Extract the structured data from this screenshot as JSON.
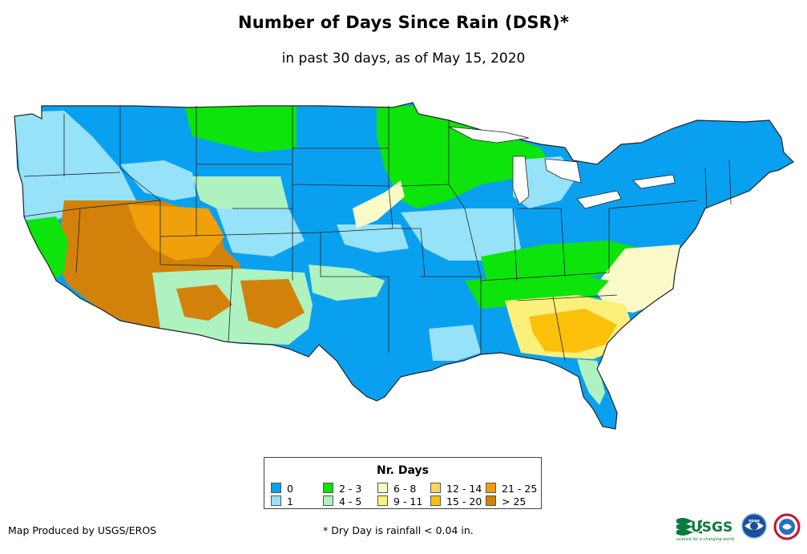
{
  "header": {
    "title": "Number of Days Since Rain (DSR)*",
    "subtitle": "in past 30 days, as of May 15, 2020"
  },
  "legend": {
    "title": "Nr. Days",
    "items": [
      {
        "label": "0",
        "color": "#0aa0f0"
      },
      {
        "label": "1",
        "color": "#96e2f8"
      },
      {
        "label": "2 - 3",
        "color": "#0ce40c"
      },
      {
        "label": "4 - 5",
        "color": "#aef2c0"
      },
      {
        "label": "6 - 8",
        "color": "#fafac8"
      },
      {
        "label": "9 - 11",
        "color": "#fbf07a"
      },
      {
        "label": "12 - 14",
        "color": "#f9d75a"
      },
      {
        "label": "15 - 20",
        "color": "#fac00a"
      },
      {
        "label": "21 - 25",
        "color": "#f0a00a"
      },
      {
        "label": "> 25",
        "color": "#d2820a"
      }
    ]
  },
  "footer": {
    "credit": "Map Produced by USGS/EROS",
    "footnote": "* Dry Day is rainfall < 0.04 in.",
    "usgs_logo_text": "USGS",
    "usgs_tagline": "science for a changing world",
    "noaa_logo_text": "noaa"
  },
  "map": {
    "region": "contiguous-united-states",
    "background_color": "#0aa0f0",
    "border_color": "#222222"
  }
}
